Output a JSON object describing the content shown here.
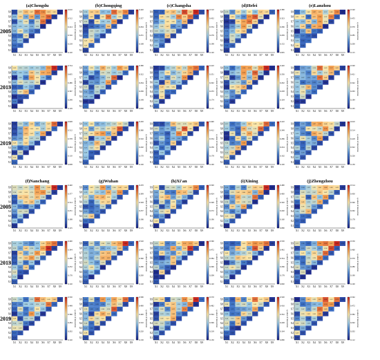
{
  "chart_data": {
    "type": "heatmap",
    "description_note": "",
    "years": [
      "2005",
      "2013",
      "2019"
    ],
    "cities": [
      "(a)Chengdu",
      "(b)Chongqing",
      "(c)Changsha",
      "(d)Hefei",
      "(e)Lanzhou",
      "(f)Nanchang",
      "(g)Wuhan",
      "(h)Xi'an",
      "(i)Xining",
      "(j)Zhengzhou"
    ],
    "factors": [
      "X1",
      "X2",
      "X3",
      "X4",
      "X5",
      "X6",
      "X7",
      "X8",
      "X9"
    ],
    "colorbar_label": "q-value of interaction",
    "colorbar_ticks": {
      "(a)Chengdu": [
        [
          "0.610",
          "0.512",
          "0.414",
          "0.316",
          "0.218",
          "0.120"
        ],
        [
          "0.724",
          "0.605",
          "0.486",
          "0.367",
          "0.248",
          "0.129"
        ],
        [
          "0.648",
          "0.512",
          "0.378",
          "0.244",
          "0.110",
          "0.008"
        ]
      ],
      "(b)Chongqing": [
        [
          "0.420",
          "0.357",
          "0.294",
          "0.231",
          "0.168",
          "0.105"
        ],
        [
          "0.380",
          "0.322",
          "0.264",
          "0.206",
          "0.148",
          "0.090"
        ],
        [
          "0.450",
          "0.380",
          "0.310",
          "0.240",
          "0.170",
          "0.100"
        ]
      ],
      "(c)Changsha": [
        [
          "0.510",
          "0.432",
          "0.354",
          "0.276",
          "0.198",
          "0.120"
        ],
        [
          "0.410",
          "0.351",
          "0.292",
          "0.233",
          "0.174",
          "0.115"
        ],
        [
          "0.490",
          "0.412",
          "0.334",
          "0.256",
          "0.178",
          "0.100"
        ]
      ],
      "(d)Hefei": [
        [
          "0.380",
          "0.323",
          "0.266",
          "0.209",
          "0.152",
          "0.095"
        ],
        [
          "0.420",
          "0.356",
          "0.292",
          "0.228",
          "0.164",
          "0.100"
        ],
        [
          "0.410",
          "0.348",
          "0.286",
          "0.224",
          "0.162",
          "0.100"
        ]
      ],
      "(e)Lanzhou": [
        [
          "0.540",
          "0.455",
          "0.370",
          "0.285",
          "0.200",
          "0.115"
        ],
        [
          "0.500",
          "0.421",
          "0.342",
          "0.263",
          "0.184",
          "0.105"
        ],
        [
          "0.610",
          "0.514",
          "0.418",
          "0.322",
          "0.226",
          "0.130"
        ]
      ],
      "(f)Nanchang": [
        [
          "0.440",
          "0.377",
          "0.314",
          "0.251",
          "0.188",
          "0.125"
        ],
        [
          "0.400",
          "0.344",
          "0.288",
          "0.232",
          "0.176",
          "0.120"
        ],
        [
          "0.530",
          "0.448",
          "0.366",
          "0.284",
          "0.202",
          "0.120"
        ]
      ],
      "(g)Wuhan": [
        [
          "0.470",
          "0.399",
          "0.328",
          "0.257",
          "0.186",
          "0.115"
        ],
        [
          "0.520",
          "0.440",
          "0.360",
          "0.280",
          "0.200",
          "0.120"
        ],
        [
          "0.580",
          "0.490",
          "0.400",
          "0.310",
          "0.220",
          "0.130"
        ]
      ],
      "(h)Xi'an": [
        [
          "0.500",
          "0.424",
          "0.348",
          "0.272",
          "0.196",
          "0.120"
        ],
        [
          "0.560",
          "0.472",
          "0.384",
          "0.296",
          "0.208",
          "0.120"
        ],
        [
          "0.570",
          "0.482",
          "0.394",
          "0.306",
          "0.218",
          "0.130"
        ]
      ],
      "(i)Xining": [
        [
          "0.480",
          "0.400",
          "0.320",
          "0.240",
          "0.160",
          "0.080"
        ],
        [
          "0.530",
          "0.442",
          "0.354",
          "0.266",
          "0.178",
          "0.090"
        ],
        [
          "0.500",
          "0.416",
          "0.332",
          "0.248",
          "0.164",
          "0.080"
        ]
      ],
      "(j)Zhengzhou": [
        [
          "0.514",
          "0.430",
          "0.346",
          "0.262",
          "0.178",
          "0.094"
        ],
        [
          "0.550",
          "0.460",
          "0.370",
          "0.280",
          "0.190",
          "0.100"
        ],
        [
          "0.562",
          "0.472",
          "0.382",
          "0.292",
          "0.202",
          "0.112"
        ]
      ]
    },
    "colormap": [
      "#1f2a8c",
      "#3b6fc4",
      "#9ccbe6",
      "#fbe6a8",
      "#f39a4b",
      "#c92a22"
    ],
    "panel_seeds": [
      [
        11,
        23,
        37
      ],
      [
        41,
        53,
        67
      ],
      [
        71,
        83,
        97
      ],
      [
        101,
        113,
        127
      ],
      [
        131,
        143,
        157
      ],
      [
        161,
        173,
        187
      ],
      [
        191,
        203,
        217
      ],
      [
        221,
        233,
        247
      ],
      [
        251,
        263,
        277
      ],
      [
        281,
        293,
        307
      ]
    ]
  }
}
